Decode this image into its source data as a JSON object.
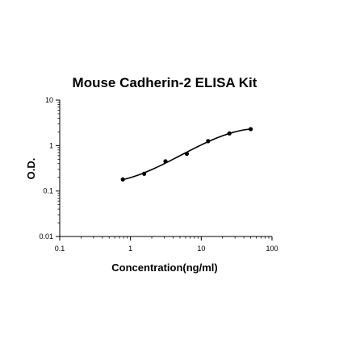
{
  "chart_data": {
    "type": "scatter",
    "title": "Mouse Cadherin-2 ELISA Kit",
    "xlabel": "Concentration(ng/ml)",
    "ylabel": "O.D.",
    "x_scale": "log",
    "y_scale": "log",
    "xlim": [
      0.1,
      100
    ],
    "ylim": [
      0.01,
      10
    ],
    "x_ticks": [
      "0.1",
      "1",
      "10",
      "100"
    ],
    "y_ticks": [
      "10",
      "1",
      "0.1",
      "0.01"
    ],
    "grid": false,
    "legend": "none",
    "series": [
      {
        "x": [
          0.78,
          1.56,
          3.12,
          6.25,
          12.5,
          25,
          50
        ],
        "y": [
          0.18,
          0.24,
          0.45,
          0.66,
          1.25,
          1.85,
          2.3
        ]
      }
    ],
    "fit_curve": true,
    "colors": {
      "marks": "#000000",
      "axis": "#000000"
    }
  }
}
